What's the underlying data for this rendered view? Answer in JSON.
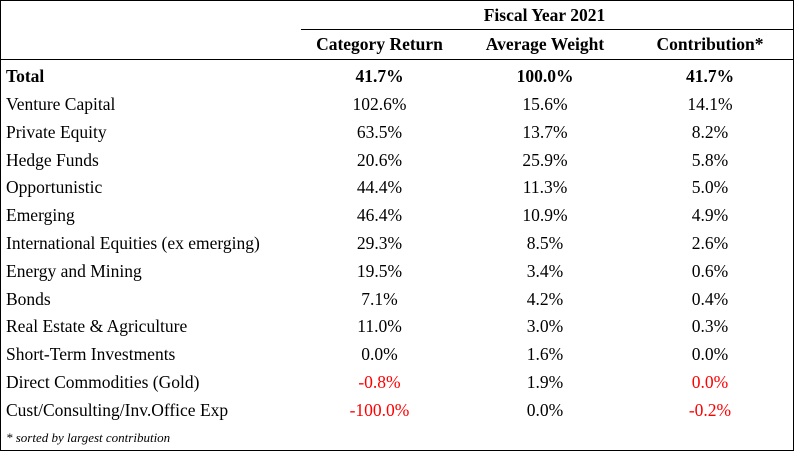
{
  "header": {
    "period": "Fiscal Year 2021",
    "columns": [
      "Category Return",
      "Average Weight",
      "Contribution*"
    ]
  },
  "total": {
    "label": "Total",
    "return": "41.7%",
    "weight": "100.0%",
    "contribution": "41.7%"
  },
  "rows": [
    {
      "label": "Venture Capital",
      "return": "102.6%",
      "weight": "15.6%",
      "contribution": "14.1%"
    },
    {
      "label": "Private Equity",
      "return": "63.5%",
      "weight": "13.7%",
      "contribution": "8.2%"
    },
    {
      "label": "Hedge Funds",
      "return": "20.6%",
      "weight": "25.9%",
      "contribution": "5.8%"
    },
    {
      "label": "Opportunistic",
      "return": "44.4%",
      "weight": "11.3%",
      "contribution": "5.0%"
    },
    {
      "label": "Emerging",
      "return": "46.4%",
      "weight": "10.9%",
      "contribution": "4.9%"
    },
    {
      "label": "International Equities (ex emerging)",
      "return": "29.3%",
      "weight": "8.5%",
      "contribution": "2.6%"
    },
    {
      "label": "Energy and Mining",
      "return": "19.5%",
      "weight": "3.4%",
      "contribution": "0.6%"
    },
    {
      "label": "Bonds",
      "return": "7.1%",
      "weight": "4.2%",
      "contribution": "0.4%"
    },
    {
      "label": "Real Estate & Agriculture",
      "return": "11.0%",
      "weight": "3.0%",
      "contribution": "0.3%"
    },
    {
      "label": "Short-Term Investments",
      "return": "0.0%",
      "weight": "1.6%",
      "contribution": "0.0%"
    },
    {
      "label": "Direct Commodities (Gold)",
      "return": "-0.8%",
      "weight": "1.9%",
      "contribution": "0.0%"
    },
    {
      "label": "Cust/Consulting/Inv.Office Exp",
      "return": "-100.0%",
      "weight": "0.0%",
      "contribution": "-0.2%"
    }
  ],
  "highlight_color": "#ff0000",
  "red_cells": {
    "Direct Commodities (Gold)": [
      "return",
      "contribution"
    ],
    "Cust/Consulting/Inv.Office Exp": [
      "return",
      "contribution"
    ]
  },
  "footnote": "* sorted by largest contribution"
}
